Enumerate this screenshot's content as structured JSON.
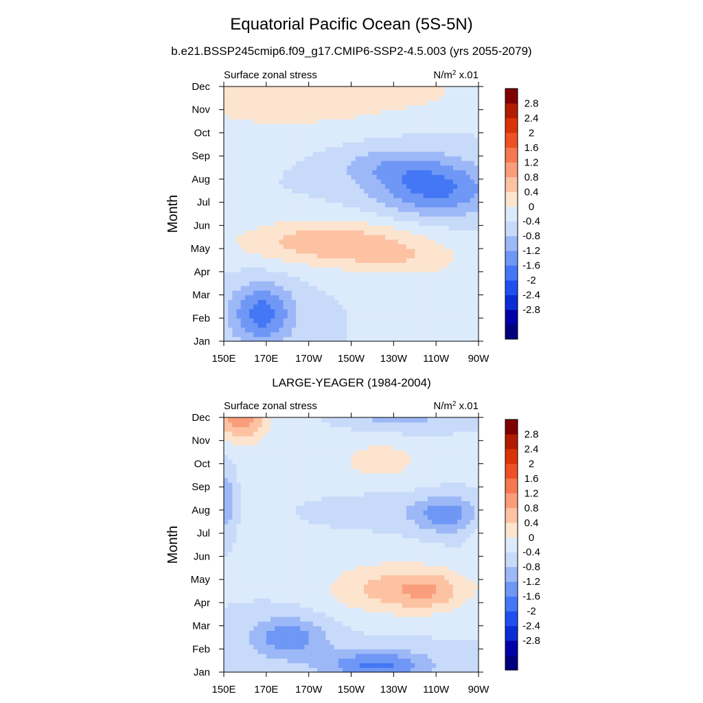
{
  "title": "Equatorial Pacific Ocean (5S-5N)",
  "subtitle": "b.e21.BSSP245cmip6.f09_g17.CMIP6-SSP2-4.5.003 (yrs 2055-2079)",
  "panel2_title": "LARGE-YEAGER (1984-2004)",
  "chart_data": [
    {
      "type": "heatmap",
      "title": "Equatorial Pacific Ocean (5S-5N)",
      "subtitle": "b.e21.BSSP245cmip6.f09_g17.CMIP6-SSP2-4.5.003 (yrs 2055-2079)",
      "left_label": "Surface zonal stress",
      "right_label_base": "N/m",
      "right_label_sup": "2",
      "right_label_suffix": " x.01",
      "ylabel": "Month",
      "xlabel": "",
      "xticks": [
        "150E",
        "170E",
        "170W",
        "150W",
        "130W",
        "110W",
        "90W"
      ],
      "yticks": [
        "Jan",
        "Feb",
        "Mar",
        "Apr",
        "May",
        "Jun",
        "Jul",
        "Aug",
        "Sep",
        "Oct",
        "Nov",
        "Dec"
      ],
      "colorbar_labels": [
        "2.8",
        "2.4",
        "2",
        "1.6",
        "1.2",
        "0.8",
        "0.4",
        "0",
        "-0.4",
        "-0.8",
        "-1.2",
        "-1.6",
        "-2",
        "-2.4",
        "-2.8"
      ],
      "features": [
        {
          "lon": 175,
          "month": 10.4,
          "slon": 60,
          "smon": 1.6,
          "amp": 0.55
        },
        {
          "lon": 235,
          "month": 10.8,
          "slon": 55,
          "smon": 1.0,
          "amp": 0.35
        },
        {
          "lon": 200,
          "month": 4.3,
          "slon": 45,
          "smon": 1.0,
          "amp": 1.05
        },
        {
          "lon": 235,
          "month": 3.5,
          "slon": 30,
          "smon": 0.8,
          "amp": 0.5
        },
        {
          "lon": 250,
          "month": 6.6,
          "slon": 28,
          "smon": 1.2,
          "amp": -1.3
        },
        {
          "lon": 228,
          "month": 7.6,
          "slon": 25,
          "smon": 0.9,
          "amp": -0.6
        },
        {
          "lon": 168,
          "month": 1.2,
          "slon": 15,
          "smon": 1.3,
          "amp": -1.4
        },
        {
          "lon": 265,
          "month": 1.5,
          "slon": 25,
          "smon": 1.3,
          "amp": 0.3
        }
      ]
    },
    {
      "type": "heatmap",
      "title": "LARGE-YEAGER (1984-2004)",
      "left_label": "Surface zonal stress",
      "right_label_base": "N/m",
      "right_label_sup": "2",
      "right_label_suffix": " x.01",
      "ylabel": "Month",
      "xlabel": "",
      "xticks": [
        "150E",
        "170E",
        "170W",
        "150W",
        "130W",
        "110W",
        "90W"
      ],
      "yticks": [
        "Jan",
        "Feb",
        "Mar",
        "Apr",
        "May",
        "Jun",
        "Jul",
        "Aug",
        "Sep",
        "Oct",
        "Nov",
        "Dec"
      ],
      "colorbar_labels": [
        "2.8",
        "2.4",
        "2",
        "1.6",
        "1.2",
        "0.8",
        "0.4",
        "0",
        "-0.4",
        "-0.8",
        "-1.2",
        "-1.6",
        "-2",
        "-2.4",
        "-2.8"
      ],
      "features": [
        {
          "lon": 158,
          "month": 11.0,
          "slon": 12,
          "smon": 1.0,
          "amp": 1.4
        },
        {
          "lon": 190,
          "month": 8.0,
          "slon": 70,
          "smon": 3.0,
          "amp": 0.2
        },
        {
          "lon": 225,
          "month": 9.2,
          "slon": 18,
          "smon": 0.8,
          "amp": 0.5
        },
        {
          "lon": 232,
          "month": 3.6,
          "slon": 32,
          "smon": 1.1,
          "amp": 1.0
        },
        {
          "lon": 248,
          "month": 3.5,
          "slon": 15,
          "smon": 0.8,
          "amp": 0.5
        },
        {
          "lon": 255,
          "month": 6.8,
          "slon": 15,
          "smon": 0.8,
          "amp": -1.0
        },
        {
          "lon": 220,
          "month": 7.0,
          "slon": 40,
          "smon": 0.8,
          "amp": -0.4
        },
        {
          "lon": 180,
          "month": 1.5,
          "slon": 18,
          "smon": 0.9,
          "amp": -1.1
        },
        {
          "lon": 222,
          "month": 0.3,
          "slon": 25,
          "smon": 0.7,
          "amp": -1.3
        },
        {
          "lon": 232,
          "month": 11.4,
          "slon": 25,
          "smon": 0.8,
          "amp": -0.9
        },
        {
          "lon": 151,
          "month": 7.5,
          "slon": 5,
          "smon": 1.5,
          "amp": -0.8
        },
        {
          "lon": 270,
          "month": 5.5,
          "slon": 4,
          "smon": 1.5,
          "amp": 0.3
        }
      ]
    }
  ],
  "colors": {
    "levels": [
      "#00007F",
      "#0000A8",
      "#0A2CD6",
      "#1F4FF0",
      "#4477F5",
      "#6F97F5",
      "#9DB8F7",
      "#C8DAFA",
      "#DCEBFB",
      "#FCE4CF",
      "#FCC2A2",
      "#F99D7B",
      "#F57850",
      "#EE5126",
      "#DA3406",
      "#B21D00",
      "#7F0000"
    ]
  }
}
